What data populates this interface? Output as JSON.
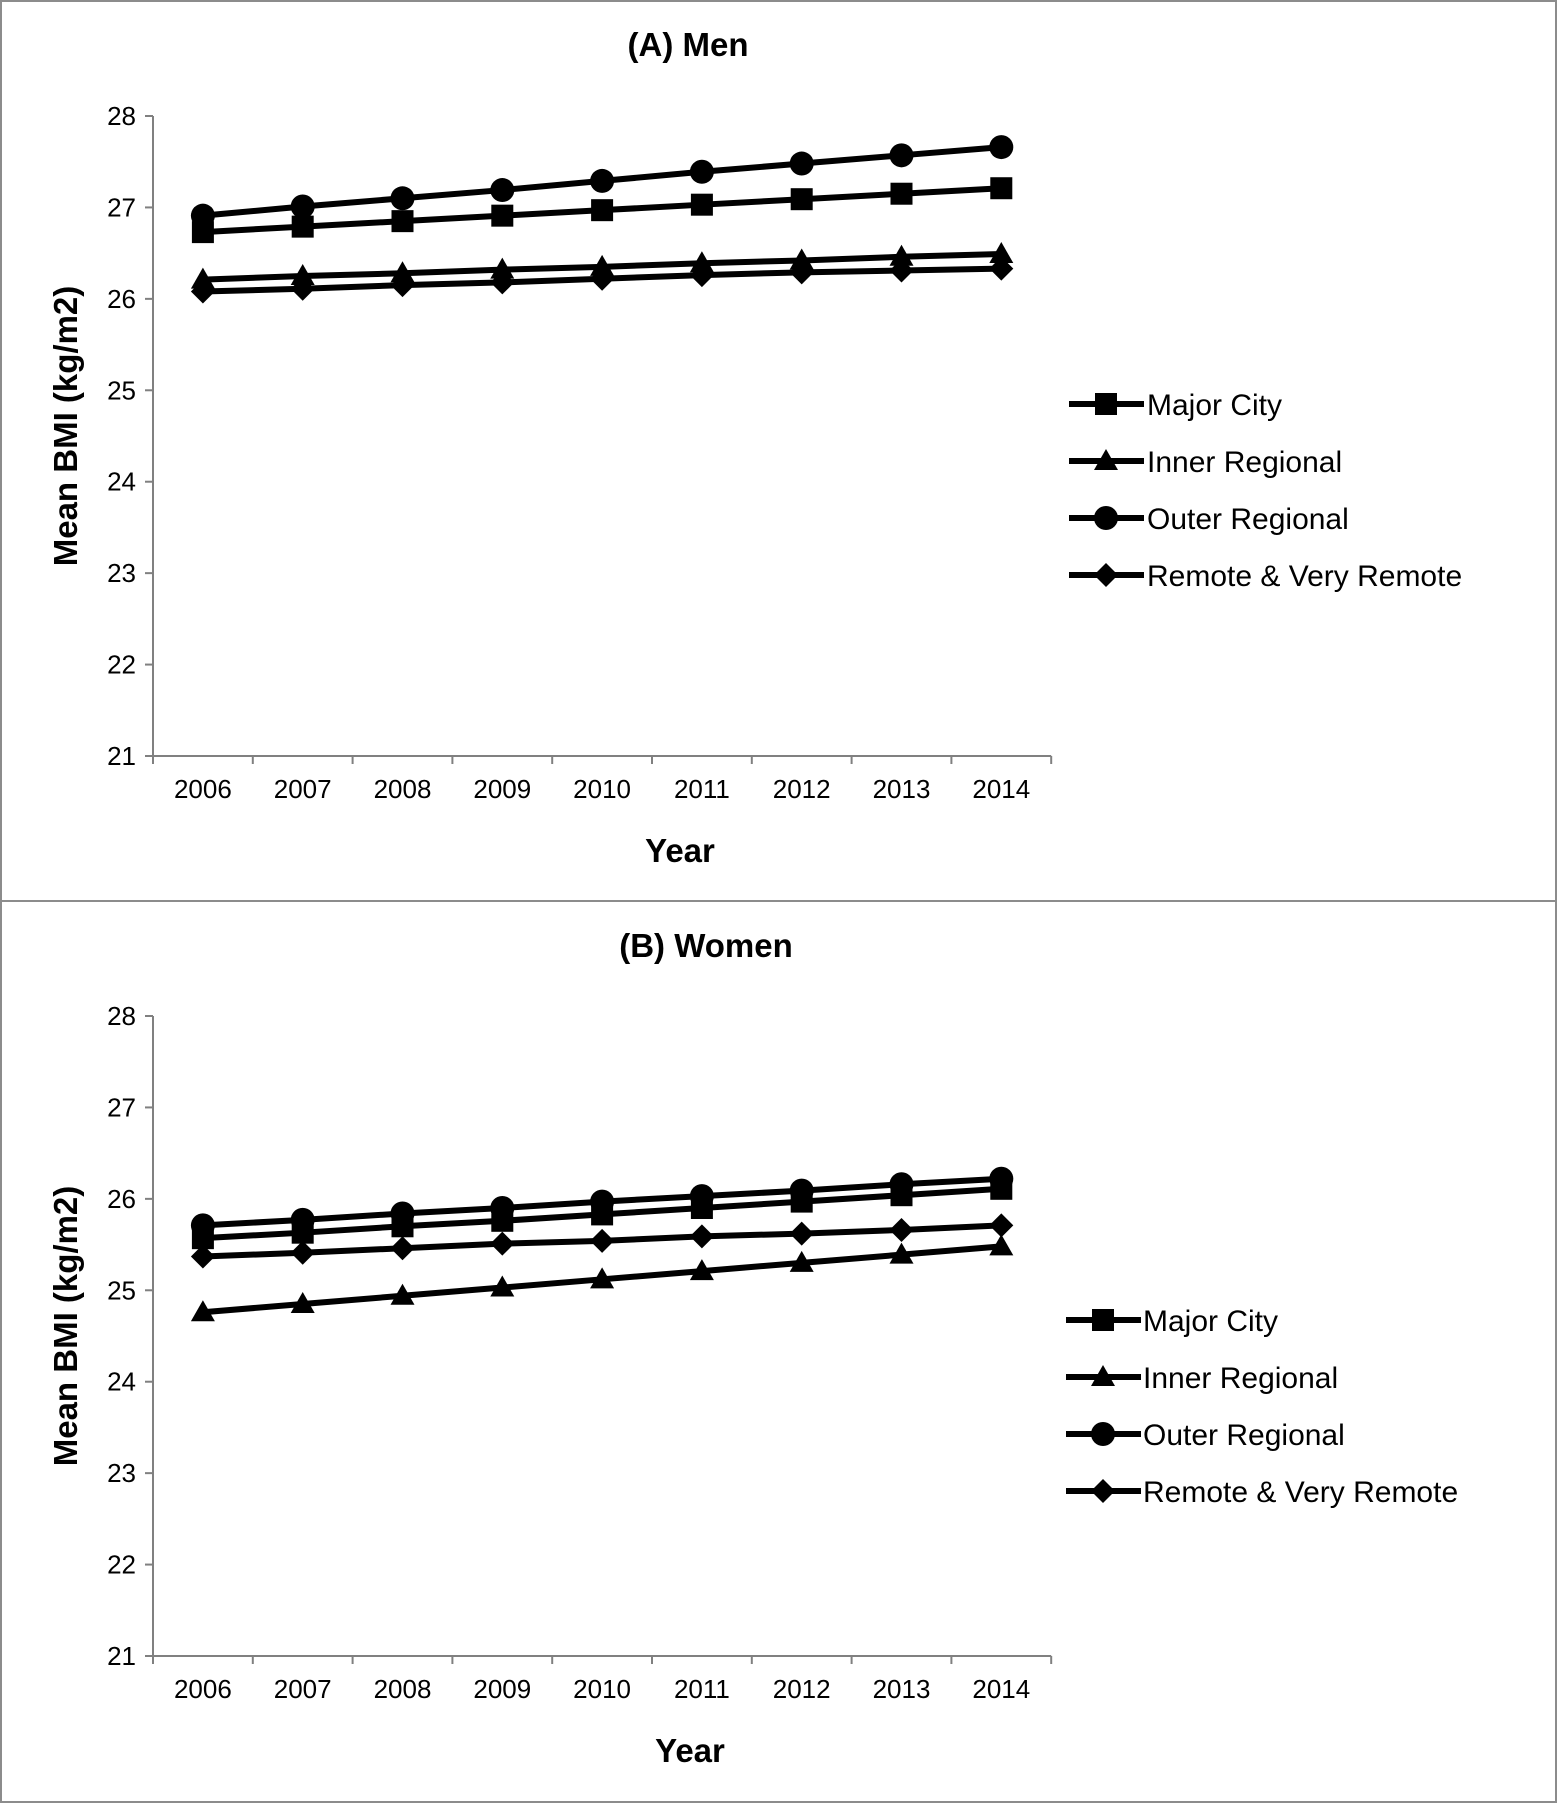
{
  "chart_data": [
    {
      "type": "line",
      "title": "(A) Men",
      "xlabel": "Year",
      "ylabel": "Mean BMI (kg/m2)",
      "ylim": [
        21,
        28
      ],
      "yticks": [
        21,
        22,
        23,
        24,
        25,
        26,
        27,
        28
      ],
      "categories": [
        "2006",
        "2007",
        "2008",
        "2009",
        "2010",
        "2011",
        "2012",
        "2013",
        "2014"
      ],
      "grid": false,
      "legend_position": "right",
      "line_color": "#000000",
      "series": [
        {
          "name": "Major City",
          "marker": "square",
          "values": [
            26.73,
            26.79,
            26.85,
            26.91,
            26.97,
            27.03,
            27.09,
            27.15,
            27.21
          ]
        },
        {
          "name": "Inner Regional",
          "marker": "triangle",
          "values": [
            26.21,
            26.25,
            26.28,
            26.32,
            26.35,
            26.39,
            26.42,
            26.46,
            26.49
          ]
        },
        {
          "name": "Outer Regional",
          "marker": "circle",
          "values": [
            26.91,
            27.01,
            27.1,
            27.19,
            27.29,
            27.39,
            27.48,
            27.57,
            27.66
          ]
        },
        {
          "name": "Remote & Very Remote",
          "marker": "diamond",
          "values": [
            26.08,
            26.11,
            26.15,
            26.18,
            26.22,
            26.26,
            26.29,
            26.31,
            26.33
          ]
        }
      ]
    },
    {
      "type": "line",
      "title": "(B) Women",
      "xlabel": "Year",
      "ylabel": "Mean BMI (kg/m2)",
      "ylim": [
        21,
        28
      ],
      "yticks": [
        21,
        22,
        23,
        24,
        25,
        26,
        27,
        28
      ],
      "categories": [
        "2006",
        "2007",
        "2008",
        "2009",
        "2010",
        "2011",
        "2012",
        "2013",
        "2014"
      ],
      "grid": false,
      "legend_position": "right",
      "line_color": "#000000",
      "series": [
        {
          "name": "Major City",
          "marker": "square",
          "values": [
            25.57,
            25.63,
            25.7,
            25.76,
            25.83,
            25.9,
            25.97,
            26.04,
            26.11
          ]
        },
        {
          "name": "Inner Regional",
          "marker": "triangle",
          "values": [
            24.76,
            24.85,
            24.94,
            25.03,
            25.12,
            25.21,
            25.3,
            25.39,
            25.48
          ]
        },
        {
          "name": "Outer Regional",
          "marker": "circle",
          "values": [
            25.71,
            25.77,
            25.84,
            25.9,
            25.97,
            26.03,
            26.09,
            26.16,
            26.22
          ]
        },
        {
          "name": "Remote & Very Remote",
          "marker": "diamond",
          "values": [
            25.37,
            25.41,
            25.46,
            25.51,
            25.54,
            25.59,
            25.62,
            25.66,
            25.71
          ]
        }
      ]
    }
  ]
}
